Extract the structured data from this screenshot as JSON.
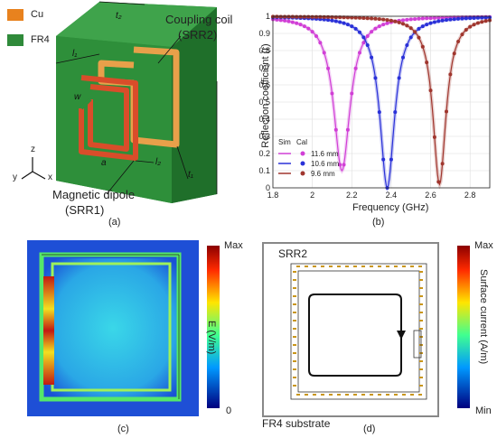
{
  "panel_a": {
    "legend": [
      {
        "label": "Cu",
        "color": "#e8821e"
      },
      {
        "label": "FR4",
        "color": "#2f8a3a"
      }
    ],
    "labels": {
      "coupling_coil": "Coupling coil",
      "srr2": "(SRR2)",
      "magnetic_dipole": "Magnetic dipole",
      "srr1": "(SRR1)",
      "axis_z": "z",
      "axis_x": "x",
      "axis_y": "y",
      "dim_t2": "t2",
      "dim_l1": "l1",
      "dim_w": "w",
      "dim_t1": "t1",
      "dim_a": "a",
      "dim_l2": "l2"
    },
    "caption": "(a)"
  },
  "panel_b": {
    "caption": "(b)",
    "legend_headers": [
      "Sim",
      "Cal"
    ],
    "chart_data": {
      "type": "line",
      "xlabel": "Frequency (GHz)",
      "ylabel": "Reflection coefficient (r)",
      "xlim": [
        1.8,
        2.9
      ],
      "ylim": [
        0,
        1
      ],
      "xticks": [
        "1.8",
        "2",
        "2.2",
        "2.4",
        "2.6",
        "2.8"
      ],
      "yticks": [
        "0",
        "0.1",
        "0.2",
        "0.3",
        "0.4",
        "0.5",
        "0.6",
        "0.7",
        "0.8",
        "0.9",
        "1"
      ],
      "grid": true,
      "legend_position": "bottom-left",
      "series": [
        {
          "name": "11.6 mm",
          "color": "#d13fd6",
          "f0": 2.15,
          "gamma": 0.05,
          "dip": 0.1
        },
        {
          "name": "10.6 mm",
          "color": "#2a31d8",
          "f0": 2.38,
          "gamma": 0.045,
          "dip": 0.0
        },
        {
          "name": "9.6 mm",
          "color": "#a0362e",
          "f0": 2.645,
          "gamma": 0.04,
          "dip": 0.02
        }
      ]
    }
  },
  "panel_c": {
    "caption": "(c)",
    "colorbar_label": "E (V/m)",
    "max_label": "Max",
    "min_label": "0"
  },
  "panel_d": {
    "caption": "(d)",
    "srr2_label": "SRR2",
    "substrate_label": "FR4 substrate",
    "colorbar_label": "Surface current (A/m)",
    "max_label": "Max",
    "min_label": "Min"
  }
}
